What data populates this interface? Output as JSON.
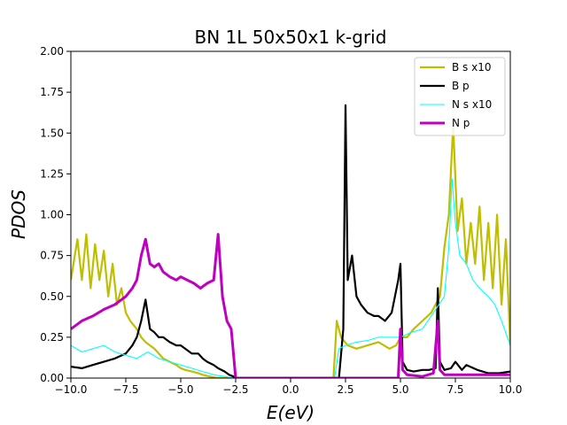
{
  "chart_data": {
    "type": "line",
    "title": "BN 1L 50x50x1 k-grid",
    "xlabel": "E(eV)",
    "ylabel": "PDOS",
    "xlim": [
      -10,
      10
    ],
    "ylim": [
      0,
      2
    ],
    "xticks": [
      "−10.0",
      "−7.5",
      "−5.0",
      "−2.5",
      "0.0",
      "2.5",
      "5.0",
      "7.5",
      "10.0"
    ],
    "yticks": [
      "0.00",
      "0.25",
      "0.50",
      "0.75",
      "1.00",
      "1.25",
      "1.50",
      "1.75",
      "2.00"
    ],
    "grid": false,
    "legend_position": "top-right",
    "series": [
      {
        "name": "B s x10",
        "color": "#bfbf00",
        "x": [
          -10,
          -9.7,
          -9.5,
          -9.3,
          -9.1,
          -8.9,
          -8.7,
          -8.5,
          -8.3,
          -8.1,
          -7.9,
          -7.7,
          -7.5,
          -7.3,
          -7.0,
          -6.8,
          -6.6,
          -6.4,
          -6.2,
          -6.0,
          -5.8,
          -5.5,
          -5.2,
          -5.0,
          -4.8,
          -4.5,
          -4.2,
          -4.0,
          -3.7,
          -3.5,
          -3.3,
          -3.1,
          -3.0,
          -2.5,
          0,
          1.95,
          2.1,
          2.3,
          2.6,
          3.0,
          3.5,
          4.0,
          4.5,
          4.8,
          5.0,
          5.3,
          5.6,
          6.0,
          6.4,
          6.8,
          7.0,
          7.2,
          7.4,
          7.6,
          7.8,
          8.0,
          8.2,
          8.4,
          8.6,
          8.8,
          9.0,
          9.2,
          9.4,
          9.6,
          9.8,
          10
        ],
        "y": [
          0.6,
          0.85,
          0.6,
          0.88,
          0.55,
          0.82,
          0.6,
          0.78,
          0.5,
          0.7,
          0.45,
          0.55,
          0.4,
          0.35,
          0.3,
          0.25,
          0.22,
          0.2,
          0.18,
          0.15,
          0.12,
          0.1,
          0.08,
          0.06,
          0.05,
          0.04,
          0.03,
          0.02,
          0.01,
          0.005,
          0.0,
          0.0,
          0.0,
          0.0,
          0.0,
          0.0,
          0.35,
          0.25,
          0.2,
          0.18,
          0.2,
          0.22,
          0.18,
          0.2,
          0.25,
          0.25,
          0.3,
          0.35,
          0.4,
          0.5,
          0.8,
          1.0,
          1.55,
          0.9,
          1.1,
          0.7,
          0.95,
          0.7,
          1.05,
          0.6,
          0.95,
          0.55,
          1.0,
          0.45,
          0.85,
          0.2
        ]
      },
      {
        "name": "B p",
        "color": "#000000",
        "x": [
          -10,
          -9.5,
          -9.0,
          -8.5,
          -8.0,
          -7.5,
          -7.2,
          -7.0,
          -6.8,
          -6.6,
          -6.4,
          -6.2,
          -6.0,
          -5.8,
          -5.5,
          -5.2,
          -5.0,
          -4.8,
          -4.5,
          -4.2,
          -4.0,
          -3.8,
          -3.5,
          -3.3,
          -3.0,
          -2.8,
          -2.6,
          -2.5,
          0,
          2.2,
          2.4,
          2.5,
          2.6,
          2.8,
          3.0,
          3.2,
          3.5,
          3.8,
          4.0,
          4.3,
          4.6,
          4.9,
          5.0,
          5.1,
          5.3,
          5.6,
          6.0,
          6.3,
          6.6,
          6.7,
          6.8,
          7.0,
          7.3,
          7.5,
          7.8,
          8.0,
          8.5,
          9.0,
          9.5,
          10
        ],
        "y": [
          0.07,
          0.06,
          0.08,
          0.1,
          0.12,
          0.15,
          0.2,
          0.25,
          0.35,
          0.48,
          0.3,
          0.28,
          0.25,
          0.25,
          0.22,
          0.2,
          0.2,
          0.18,
          0.15,
          0.15,
          0.12,
          0.1,
          0.08,
          0.06,
          0.04,
          0.02,
          0.01,
          0.0,
          0.0,
          0.0,
          0.3,
          1.67,
          0.6,
          0.75,
          0.5,
          0.45,
          0.4,
          0.38,
          0.38,
          0.35,
          0.4,
          0.6,
          0.7,
          0.1,
          0.05,
          0.04,
          0.05,
          0.05,
          0.06,
          0.55,
          0.1,
          0.05,
          0.06,
          0.1,
          0.05,
          0.08,
          0.05,
          0.03,
          0.03,
          0.04
        ]
      },
      {
        "name": "N s x10",
        "color": "#00ffff",
        "x": [
          -10,
          -9.5,
          -9.0,
          -8.5,
          -8.0,
          -7.5,
          -7.0,
          -6.5,
          -6.0,
          -5.5,
          -5.0,
          -4.5,
          -4.0,
          -3.5,
          -3.0,
          -2.6,
          -2.5,
          0,
          2.0,
          2.2,
          2.5,
          3.0,
          3.5,
          4.0,
          4.5,
          5.0,
          5.5,
          6.0,
          6.5,
          7.0,
          7.2,
          7.35,
          7.5,
          7.7,
          8.0,
          8.3,
          8.6,
          9.0,
          9.3,
          9.6,
          10
        ],
        "y": [
          0.2,
          0.16,
          0.18,
          0.2,
          0.16,
          0.14,
          0.12,
          0.16,
          0.12,
          0.1,
          0.08,
          0.06,
          0.04,
          0.02,
          0.01,
          0.0,
          0.0,
          0.0,
          0.0,
          0.18,
          0.2,
          0.22,
          0.23,
          0.25,
          0.25,
          0.25,
          0.28,
          0.3,
          0.4,
          0.5,
          0.8,
          1.22,
          0.95,
          0.75,
          0.7,
          0.6,
          0.55,
          0.5,
          0.45,
          0.35,
          0.2
        ]
      },
      {
        "name": "N p",
        "color": "#bf00bf",
        "x": [
          -10,
          -9.5,
          -9.0,
          -8.5,
          -8.0,
          -7.5,
          -7.2,
          -7.0,
          -6.8,
          -6.6,
          -6.4,
          -6.2,
          -6.0,
          -5.8,
          -5.5,
          -5.2,
          -5.0,
          -4.7,
          -4.4,
          -4.1,
          -3.8,
          -3.5,
          -3.3,
          -3.1,
          -2.9,
          -2.7,
          -2.5,
          0,
          4.7,
          4.9,
          5.0,
          5.1,
          5.3,
          6.0,
          6.5,
          6.7,
          6.8,
          7.0,
          10
        ],
        "y": [
          0.3,
          0.35,
          0.38,
          0.42,
          0.45,
          0.5,
          0.55,
          0.6,
          0.75,
          0.85,
          0.7,
          0.68,
          0.7,
          0.65,
          0.62,
          0.6,
          0.62,
          0.6,
          0.58,
          0.55,
          0.58,
          0.6,
          0.88,
          0.5,
          0.35,
          0.3,
          0.0,
          0.0,
          0.0,
          0.0,
          0.3,
          0.05,
          0.02,
          0.01,
          0.03,
          0.35,
          0.05,
          0.02,
          0.02
        ]
      }
    ]
  }
}
